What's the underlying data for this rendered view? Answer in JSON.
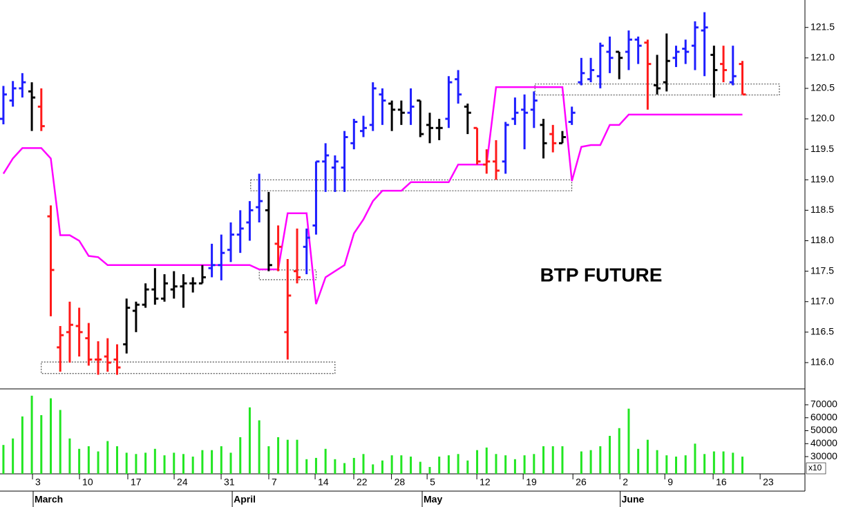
{
  "chart_data": [
    {
      "type": "ohlc",
      "annotation": "BTP FUTURE",
      "xlim": [
        -0.36,
        84.6
      ],
      "ylim": [
        115.58,
        121.95
      ],
      "yticks": [
        {
          "value": 116,
          "label": "116.0"
        },
        116.5,
        {
          "value": 117,
          "label": "117.0"
        },
        117.5,
        {
          "value": 118,
          "label": "118.0"
        },
        118.5,
        {
          "value": 119,
          "label": "119.0"
        },
        119.5,
        {
          "value": 120,
          "label": "120.0"
        },
        120.5,
        {
          "value": 121,
          "label": "121.0"
        },
        121.5
      ],
      "open": [
        120.0,
        120.3,
        120.5,
        120.45,
        120.2,
        118.4,
        116.25,
        116.5,
        116.6,
        116.4,
        116.05,
        116.1,
        116.05,
        116.3,
        116.85,
        116.95,
        117.2,
        117.05,
        117.2,
        117.25,
        117.3,
        117.3,
        117.55,
        117.6,
        117.85,
        118.1,
        118.3,
        118.55,
        118.5,
        117.95,
        116.5,
        117.5,
        117.9,
        118.25,
        119.3,
        119.2,
        119.2,
        119.6,
        119.8,
        119.9,
        120.4,
        120.25,
        120.15,
        120.1,
        120.3,
        119.9,
        119.85,
        120.0,
        120.65,
        120.2,
        119.85,
        119.25,
        119.3,
        119.3,
        120.0,
        120.15,
        120.15,
        119.9,
        119.75,
        119.6,
        119.95,
        120.6,
        120.65,
        120.7,
        121.1,
        121.1,
        121.1,
        121.3,
        121.25,
        120.55,
        120.6,
        121.0,
        121.15,
        121.2,
        121.45,
        121.05,
        120.9,
        120.6,
        120.9
      ],
      "high": [
        120.54,
        120.62,
        120.75,
        120.6,
        120.5,
        118.58,
        116.6,
        117.0,
        116.9,
        116.65,
        116.35,
        116.4,
        116.3,
        117.05,
        117.0,
        117.3,
        117.55,
        117.45,
        117.5,
        117.45,
        117.4,
        117.6,
        117.95,
        118.1,
        118.3,
        118.5,
        118.65,
        119.1,
        118.8,
        118.25,
        117.7,
        118.2,
        118.2,
        119.3,
        119.6,
        119.4,
        119.8,
        120.0,
        120.05,
        120.6,
        120.5,
        120.3,
        120.3,
        120.5,
        120.3,
        120.1,
        120.0,
        120.7,
        120.8,
        120.25,
        119.85,
        119.5,
        119.65,
        119.95,
        120.35,
        120.4,
        120.45,
        120.0,
        119.9,
        119.8,
        120.2,
        121.0,
        121.0,
        121.25,
        121.35,
        121.1,
        121.45,
        121.35,
        121.3,
        121.05,
        121.4,
        121.2,
        121.3,
        121.6,
        121.75,
        121.2,
        121.2,
        121.2,
        120.95
      ],
      "low": [
        119.91,
        120.2,
        120.35,
        119.8,
        119.8,
        116.76,
        115.85,
        116.0,
        116.1,
        115.95,
        115.8,
        115.85,
        115.8,
        116.15,
        116.5,
        116.9,
        116.95,
        117.0,
        117.05,
        116.9,
        117.15,
        117.3,
        117.4,
        117.35,
        117.65,
        117.8,
        118.0,
        118.3,
        117.5,
        117.5,
        116.05,
        117.3,
        117.45,
        118.1,
        118.8,
        118.8,
        118.8,
        119.5,
        119.7,
        119.8,
        119.9,
        119.8,
        119.9,
        119.9,
        119.7,
        119.6,
        119.65,
        119.85,
        120.25,
        119.75,
        119.25,
        119.1,
        119.0,
        119.1,
        119.9,
        119.5,
        119.85,
        119.35,
        119.45,
        119.6,
        119.9,
        120.55,
        120.6,
        120.5,
        120.75,
        120.65,
        120.8,
        120.9,
        120.15,
        120.4,
        120.45,
        120.85,
        120.9,
        120.8,
        120.7,
        120.35,
        120.6,
        120.55,
        120.4
      ],
      "close": [
        120.4,
        120.5,
        120.6,
        120.35,
        119.88,
        117.52,
        116.45,
        116.62,
        116.5,
        116.05,
        116.05,
        116.0,
        115.92,
        116.9,
        116.95,
        117.2,
        117.05,
        117.3,
        117.25,
        117.3,
        117.3,
        117.4,
        117.6,
        117.8,
        118.1,
        118.2,
        118.5,
        118.65,
        117.6,
        117.9,
        117.1,
        117.4,
        118.05,
        119.3,
        119.4,
        119.3,
        119.7,
        119.95,
        119.85,
        120.5,
        120.3,
        120.15,
        120.1,
        120.2,
        119.75,
        119.85,
        119.85,
        120.6,
        120.4,
        120.1,
        119.3,
        119.3,
        119.15,
        119.9,
        120.1,
        120.1,
        120.3,
        119.6,
        119.6,
        119.7,
        120.1,
        120.75,
        120.8,
        121.2,
        121.0,
        121.0,
        121.3,
        121.2,
        120.9,
        120.5,
        120.95,
        121.1,
        121.1,
        121.5,
        121.5,
        120.8,
        120.8,
        120.7,
        120.4
      ],
      "bar_colors": [
        "#1e1eff",
        "#1e1eff",
        "#1e1eff",
        "#000000",
        "#ff1a1a",
        "#ff1a1a",
        "#ff1a1a",
        "#ff1a1a",
        "#ff1a1a",
        "#ff1a1a",
        "#ff1a1a",
        "#ff1a1a",
        "#ff1a1a",
        "#000000",
        "#000000",
        "#000000",
        "#000000",
        "#000000",
        "#000000",
        "#000000",
        "#000000",
        "#000000",
        "#1e1eff",
        "#1e1eff",
        "#1e1eff",
        "#1e1eff",
        "#1e1eff",
        "#1e1eff",
        "#000000",
        "#ff1a1a",
        "#ff1a1a",
        "#ff1a1a",
        "#1e1eff",
        "#1e1eff",
        "#1e1eff",
        "#1e1eff",
        "#1e1eff",
        "#1e1eff",
        "#1e1eff",
        "#1e1eff",
        "#1e1eff",
        "#000000",
        "#000000",
        "#1e1eff",
        "#000000",
        "#000000",
        "#000000",
        "#1e1eff",
        "#1e1eff",
        "#000000",
        "#ff1a1a",
        "#ff1a1a",
        "#ff1a1a",
        "#1e1eff",
        "#1e1eff",
        "#1e1eff",
        "#1e1eff",
        "#000000",
        "#ff1a1a",
        "#000000",
        "#1e1eff",
        "#1e1eff",
        "#1e1eff",
        "#1e1eff",
        "#1e1eff",
        "#000000",
        "#1e1eff",
        "#1e1eff",
        "#ff1a1a",
        "#000000",
        "#000000",
        "#1e1eff",
        "#1e1eff",
        "#1e1eff",
        "#1e1eff",
        "#000000",
        "#ff1a1a",
        "#1e1eff",
        "#ff1a1a"
      ],
      "line": {
        "color": "#ff00ff",
        "values": [
          119.1,
          119.35,
          119.52,
          119.52,
          119.52,
          119.35,
          118.09,
          118.09,
          118.0,
          117.75,
          117.73,
          117.6,
          117.6,
          117.6,
          117.6,
          117.6,
          117.6,
          117.6,
          117.6,
          117.6,
          117.6,
          117.6,
          117.6,
          117.6,
          117.6,
          117.6,
          117.6,
          117.53,
          117.53,
          117.53,
          118.45,
          118.45,
          118.45,
          116.96,
          117.4,
          117.5,
          117.6,
          118.12,
          118.35,
          118.65,
          118.82,
          118.82,
          118.82,
          118.96,
          118.96,
          118.96,
          118.96,
          118.96,
          119.25,
          119.25,
          119.25,
          119.25,
          120.52,
          120.52,
          120.52,
          120.52,
          120.52,
          120.52,
          120.52,
          120.52,
          118.98,
          119.54,
          119.57,
          119.57,
          119.9,
          119.9,
          120.07,
          120.07,
          120.07,
          120.07,
          120.07,
          120.07,
          120.07,
          120.07,
          120.07,
          120.07,
          120.07,
          120.07,
          120.07
        ]
      },
      "zones": [
        {
          "x": [
            4.0,
            35.0
          ],
          "y": [
            115.82,
            116.01
          ]
        },
        {
          "x": [
            26.1,
            60.0
          ],
          "y": [
            118.82,
            119.0
          ]
        },
        {
          "x": [
            27.0,
            33.0
          ],
          "y": [
            117.36,
            117.52
          ]
        },
        {
          "x": [
            56.1,
            81.9
          ],
          "y": [
            120.39,
            120.57
          ]
        }
      ]
    },
    {
      "type": "bar",
      "color": "#22e622",
      "multiplier": "x10",
      "xlim": [
        -0.36,
        84.6
      ],
      "ylim": [
        16700,
        81200
      ],
      "yticks": [
        30000,
        40000,
        50000,
        60000,
        70000
      ],
      "values": [
        39000,
        44000,
        61000,
        77000,
        62000,
        75000,
        66000,
        44000,
        36000,
        38000,
        34000,
        42000,
        38000,
        33000,
        32000,
        33000,
        36000,
        31000,
        33000,
        32000,
        30000,
        35000,
        35000,
        38000,
        33000,
        45000,
        68000,
        58000,
        38000,
        45000,
        43000,
        43000,
        28000,
        29000,
        36000,
        28000,
        25000,
        29000,
        32000,
        24000,
        27000,
        31000,
        31000,
        30000,
        26000,
        22000,
        30000,
        31000,
        32000,
        27000,
        35000,
        37000,
        32000,
        31000,
        28000,
        31000,
        32000,
        38000,
        38000,
        38000,
        null,
        34000,
        35000,
        38000,
        46000,
        52000,
        67000,
        36000,
        43000,
        35000,
        31000,
        30000,
        31000,
        40000,
        32000,
        34000,
        34000,
        33000,
        30000
      ],
      "xticks": [
        {
          "value": 3.07,
          "label": "3"
        },
        {
          "value": 8.03,
          "label": "10"
        },
        {
          "value": 13.13,
          "label": "17"
        },
        {
          "value": 18.02,
          "label": "24"
        },
        {
          "value": 22.98,
          "label": "31"
        },
        {
          "value": 28.01,
          "label": "7"
        },
        {
          "value": 32.9,
          "label": "14"
        },
        {
          "value": 36.98,
          "label": "22"
        },
        {
          "value": 40.96,
          "label": "28"
        },
        {
          "value": 44.72,
          "label": "5"
        },
        {
          "value": 49.97,
          "label": "12"
        },
        {
          "value": 54.86,
          "label": "19"
        },
        {
          "value": 60.11,
          "label": "26"
        },
        {
          "value": 65.07,
          "label": "2"
        },
        {
          "value": 69.81,
          "label": "9"
        },
        {
          "value": 74.91,
          "label": "16"
        },
        {
          "value": 79.87,
          "label": "23"
        }
      ],
      "months": [
        {
          "value": 3.14,
          "label": "March"
        },
        {
          "value": 24.15,
          "label": "April"
        },
        {
          "value": 44.2,
          "label": "May"
        },
        {
          "value": 65.1,
          "label": "June"
        }
      ]
    }
  ]
}
